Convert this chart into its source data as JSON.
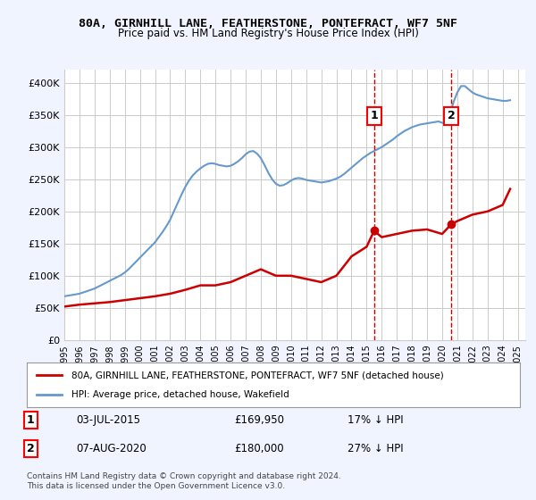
{
  "title": "80A, GIRNHILL LANE, FEATHERSTONE, PONTEFRACT, WF7 5NF",
  "subtitle": "Price paid vs. HM Land Registry's House Price Index (HPI)",
  "ylabel_ticks": [
    "£0",
    "£50K",
    "£100K",
    "£150K",
    "£200K",
    "£250K",
    "£300K",
    "£350K",
    "£400K"
  ],
  "ytick_vals": [
    0,
    50000,
    100000,
    150000,
    200000,
    250000,
    300000,
    350000,
    400000
  ],
  "ylim": [
    0,
    420000
  ],
  "xlim_start": 1995.0,
  "xlim_end": 2025.5,
  "legend_label_red": "80A, GIRNHILL LANE, FEATHERSTONE, PONTEFRACT, WF7 5NF (detached house)",
  "legend_label_blue": "HPI: Average price, detached house, Wakefield",
  "transaction1_x": 2015.5,
  "transaction1_label": "1",
  "transaction1_date": "03-JUL-2015",
  "transaction1_price": "£169,950",
  "transaction1_pct": "17% ↓ HPI",
  "transaction2_x": 2020.6,
  "transaction2_label": "2",
  "transaction2_date": "07-AUG-2020",
  "transaction2_price": "£180,000",
  "transaction2_pct": "27% ↓ HPI",
  "footer": "Contains HM Land Registry data © Crown copyright and database right 2024.\nThis data is licensed under the Open Government Licence v3.0.",
  "hpi_x": [
    1995.0,
    1995.25,
    1995.5,
    1995.75,
    1996.0,
    1996.25,
    1996.5,
    1996.75,
    1997.0,
    1997.25,
    1997.5,
    1997.75,
    1998.0,
    1998.25,
    1998.5,
    1998.75,
    1999.0,
    1999.25,
    1999.5,
    1999.75,
    2000.0,
    2000.25,
    2000.5,
    2000.75,
    2001.0,
    2001.25,
    2001.5,
    2001.75,
    2002.0,
    2002.25,
    2002.5,
    2002.75,
    2003.0,
    2003.25,
    2003.5,
    2003.75,
    2004.0,
    2004.25,
    2004.5,
    2004.75,
    2005.0,
    2005.25,
    2005.5,
    2005.75,
    2006.0,
    2006.25,
    2006.5,
    2006.75,
    2007.0,
    2007.25,
    2007.5,
    2007.75,
    2008.0,
    2008.25,
    2008.5,
    2008.75,
    2009.0,
    2009.25,
    2009.5,
    2009.75,
    2010.0,
    2010.25,
    2010.5,
    2010.75,
    2011.0,
    2011.25,
    2011.5,
    2011.75,
    2012.0,
    2012.25,
    2012.5,
    2012.75,
    2013.0,
    2013.25,
    2013.5,
    2013.75,
    2014.0,
    2014.25,
    2014.5,
    2014.75,
    2015.0,
    2015.25,
    2015.5,
    2015.75,
    2016.0,
    2016.25,
    2016.5,
    2016.75,
    2017.0,
    2017.25,
    2017.5,
    2017.75,
    2018.0,
    2018.25,
    2018.5,
    2018.75,
    2019.0,
    2019.25,
    2019.5,
    2019.75,
    2020.0,
    2020.25,
    2020.5,
    2020.75,
    2021.0,
    2021.25,
    2021.5,
    2021.75,
    2022.0,
    2022.25,
    2022.5,
    2022.75,
    2023.0,
    2023.25,
    2023.5,
    2023.75,
    2024.0,
    2024.25,
    2024.5
  ],
  "hpi_y": [
    68000,
    69000,
    70000,
    71000,
    72000,
    74000,
    76000,
    78000,
    80000,
    83000,
    86000,
    89000,
    92000,
    95000,
    98000,
    101000,
    105000,
    110000,
    116000,
    122000,
    128000,
    134000,
    140000,
    146000,
    152000,
    160000,
    168000,
    177000,
    187000,
    200000,
    213000,
    226000,
    238000,
    248000,
    256000,
    262000,
    267000,
    271000,
    274000,
    275000,
    274000,
    272000,
    271000,
    270000,
    271000,
    274000,
    278000,
    283000,
    289000,
    293000,
    294000,
    290000,
    283000,
    272000,
    260000,
    250000,
    243000,
    240000,
    241000,
    244000,
    248000,
    251000,
    252000,
    251000,
    249000,
    248000,
    247000,
    246000,
    245000,
    246000,
    247000,
    249000,
    251000,
    254000,
    258000,
    263000,
    268000,
    273000,
    278000,
    283000,
    287000,
    291000,
    294000,
    297000,
    300000,
    304000,
    308000,
    312000,
    317000,
    321000,
    325000,
    328000,
    331000,
    333000,
    335000,
    336000,
    337000,
    338000,
    339000,
    340000,
    338000,
    336000,
    350000,
    370000,
    385000,
    395000,
    395000,
    390000,
    385000,
    382000,
    380000,
    378000,
    376000,
    375000,
    374000,
    373000,
    372000,
    372000,
    373000
  ],
  "red_x": [
    1995.0,
    1996.0,
    1997.0,
    1998.0,
    1999.0,
    2000.0,
    2001.0,
    2002.0,
    2003.0,
    2004.0,
    2005.0,
    2006.0,
    2007.0,
    2008.0,
    2009.0,
    2010.0,
    2011.0,
    2012.0,
    2013.0,
    2014.0,
    2015.0,
    2015.5,
    2016.0,
    2017.0,
    2018.0,
    2019.0,
    2020.0,
    2020.6,
    2021.0,
    2022.0,
    2023.0,
    2024.0,
    2024.5
  ],
  "red_y": [
    52000,
    55000,
    57000,
    59000,
    62000,
    65000,
    68000,
    72000,
    78000,
    85000,
    85000,
    90000,
    100000,
    110000,
    100000,
    100000,
    95000,
    90000,
    100000,
    130000,
    145000,
    169950,
    160000,
    165000,
    170000,
    172000,
    165000,
    180000,
    185000,
    195000,
    200000,
    210000,
    235000
  ],
  "background_color": "#f0f4ff",
  "plot_bg": "#ffffff",
  "red_color": "#cc0000",
  "blue_color": "#6699cc",
  "grid_color": "#cccccc",
  "vline_color": "#cc0000",
  "marker1_x": 2015.5,
  "marker1_y": 169950,
  "marker2_x": 2020.6,
  "marker2_y": 180000
}
